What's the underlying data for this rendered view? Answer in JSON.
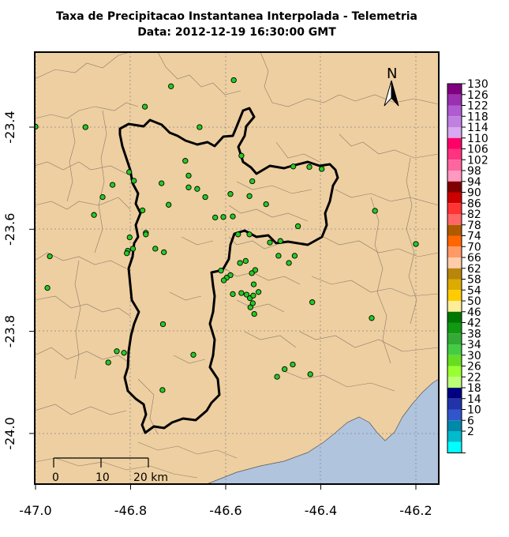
{
  "title": "Taxa de Precipitacao Instantanea Interpolada - Telemetria",
  "subtitle": "Data: 2012-12-19 16:30:00 GMT",
  "colors": {
    "land": "#eecfa1",
    "sea": "#b0c4de",
    "station": "#22cc22",
    "boundary": "#000000",
    "grid": "#888888"
  },
  "axes": {
    "x_ticks": [
      {
        "v": -47.0,
        "label": "-47.0"
      },
      {
        "v": -46.8,
        "label": "-46.8"
      },
      {
        "v": -46.6,
        "label": "-46.6"
      },
      {
        "v": -46.4,
        "label": "-46.4"
      },
      {
        "v": -46.2,
        "label": "-46.2"
      }
    ],
    "y_ticks": [
      {
        "v": -23.4,
        "label": "-23.4"
      },
      {
        "v": -23.6,
        "label": "-23.6"
      },
      {
        "v": -23.8,
        "label": "-23.8"
      },
      {
        "v": -24.0,
        "label": "-24.0"
      }
    ],
    "xlim": [
      -47.0,
      -46.15
    ],
    "ylim": [
      -24.05,
      -23.33
    ]
  },
  "north_arrow": {
    "label": "N"
  },
  "scalebar": {
    "labels": [
      "0",
      "10",
      "20 km"
    ]
  },
  "legend": {
    "entries": [
      {
        "label": "130",
        "color": "#800080"
      },
      {
        "label": "126",
        "color": "#9b30b0"
      },
      {
        "label": "122",
        "color": "#b05cd0"
      },
      {
        "label": "118",
        "color": "#c080e0"
      },
      {
        "label": "114",
        "color": "#d8a8f0"
      },
      {
        "label": "110",
        "color": "#ff0066"
      },
      {
        "label": "106",
        "color": "#ff3380"
      },
      {
        "label": "102",
        "color": "#ff66a0"
      },
      {
        "label": "98",
        "color": "#ff99c0"
      },
      {
        "label": "94",
        "color": "#800000"
      },
      {
        "label": "90",
        "color": "#cc0000"
      },
      {
        "label": "86",
        "color": "#ff3333"
      },
      {
        "label": "82",
        "color": "#ff6666"
      },
      {
        "label": "78",
        "color": "#b05a00"
      },
      {
        "label": "74",
        "color": "#ff6600"
      },
      {
        "label": "70",
        "color": "#ff9966"
      },
      {
        "label": "66",
        "color": "#ffccaa"
      },
      {
        "label": "62",
        "color": "#b8860b"
      },
      {
        "label": "58",
        "color": "#ddaa00"
      },
      {
        "label": "54",
        "color": "#ffcc00"
      },
      {
        "label": "50",
        "color": "#ffee99"
      },
      {
        "label": "46",
        "color": "#007700"
      },
      {
        "label": "42",
        "color": "#119911"
      },
      {
        "label": "38",
        "color": "#33aa33"
      },
      {
        "label": "34",
        "color": "#44cc44"
      },
      {
        "label": "30",
        "color": "#66dd22"
      },
      {
        "label": "26",
        "color": "#99ff33"
      },
      {
        "label": "22",
        "color": "#bbff77"
      },
      {
        "label": "18",
        "color": "#000080"
      },
      {
        "label": "14",
        "color": "#2233aa"
      },
      {
        "label": "10",
        "color": "#3355cc"
      },
      {
        "label": "6",
        "color": "#0088aa"
      },
      {
        "label": "2",
        "color": "#00bbcc"
      },
      {
        "label": "",
        "color": "#00ffff"
      }
    ]
  },
  "stations": [
    [
      -47.0,
      -23.399
    ],
    [
      -46.895,
      -23.4
    ],
    [
      -46.715,
      -23.32
    ],
    [
      -46.655,
      -23.4
    ],
    [
      -46.583,
      -23.308
    ],
    [
      -46.77,
      -23.36
    ],
    [
      -46.567,
      -23.456
    ],
    [
      -46.685,
      -23.466
    ],
    [
      -46.803,
      -23.488
    ],
    [
      -46.678,
      -23.495
    ],
    [
      -46.793,
      -23.505
    ],
    [
      -46.735,
      -23.51
    ],
    [
      -46.838,
      -23.513
    ],
    [
      -46.678,
      -23.518
    ],
    [
      -46.66,
      -23.521
    ],
    [
      -46.643,
      -23.537
    ],
    [
      -46.59,
      -23.531
    ],
    [
      -46.55,
      -23.535
    ],
    [
      -46.544,
      -23.506
    ],
    [
      -46.458,
      -23.477
    ],
    [
      -46.424,
      -23.478
    ],
    [
      -46.398,
      -23.482
    ],
    [
      -46.859,
      -23.537
    ],
    [
      -46.72,
      -23.552
    ],
    [
      -46.775,
      -23.563
    ],
    [
      -46.877,
      -23.572
    ],
    [
      -46.622,
      -23.577
    ],
    [
      -46.605,
      -23.576
    ],
    [
      -46.585,
      -23.575
    ],
    [
      -46.515,
      -23.551
    ],
    [
      -46.286,
      -23.564
    ],
    [
      -46.448,
      -23.594
    ],
    [
      -46.768,
      -23.607
    ],
    [
      -46.768,
      -23.61
    ],
    [
      -46.802,
      -23.616
    ],
    [
      -46.574,
      -23.61
    ],
    [
      -46.55,
      -23.61
    ],
    [
      -46.507,
      -23.626
    ],
    [
      -46.485,
      -23.623
    ],
    [
      -46.2,
      -23.629
    ],
    [
      -46.795,
      -23.638
    ],
    [
      -46.806,
      -23.642
    ],
    [
      -46.808,
      -23.647
    ],
    [
      -46.748,
      -23.638
    ],
    [
      -46.73,
      -23.645
    ],
    [
      -46.97,
      -23.653
    ],
    [
      -46.489,
      -23.652
    ],
    [
      -46.455,
      -23.652
    ],
    [
      -46.467,
      -23.666
    ],
    [
      -46.61,
      -23.681
    ],
    [
      -46.57,
      -23.666
    ],
    [
      -46.558,
      -23.662
    ],
    [
      -46.538,
      -23.68
    ],
    [
      -46.545,
      -23.686
    ],
    [
      -46.59,
      -23.69
    ],
    [
      -46.598,
      -23.695
    ],
    [
      -46.604,
      -23.7
    ],
    [
      -46.975,
      -23.715
    ],
    [
      -46.541,
      -23.708
    ],
    [
      -46.567,
      -23.725
    ],
    [
      -46.556,
      -23.728
    ],
    [
      -46.549,
      -23.735
    ],
    [
      -46.542,
      -23.73
    ],
    [
      -46.531,
      -23.723
    ],
    [
      -46.585,
      -23.727
    ],
    [
      -46.543,
      -23.745
    ],
    [
      -46.548,
      -23.753
    ],
    [
      -46.54,
      -23.766
    ],
    [
      -46.418,
      -23.743
    ],
    [
      -46.293,
      -23.774
    ],
    [
      -46.732,
      -23.786
    ],
    [
      -46.829,
      -23.839
    ],
    [
      -46.814,
      -23.842
    ],
    [
      -46.668,
      -23.846
    ],
    [
      -46.847,
      -23.861
    ],
    [
      -46.459,
      -23.865
    ],
    [
      -46.476,
      -23.874
    ],
    [
      -46.422,
      -23.884
    ],
    [
      -46.492,
      -23.889
    ],
    [
      -46.733,
      -23.915
    ]
  ]
}
